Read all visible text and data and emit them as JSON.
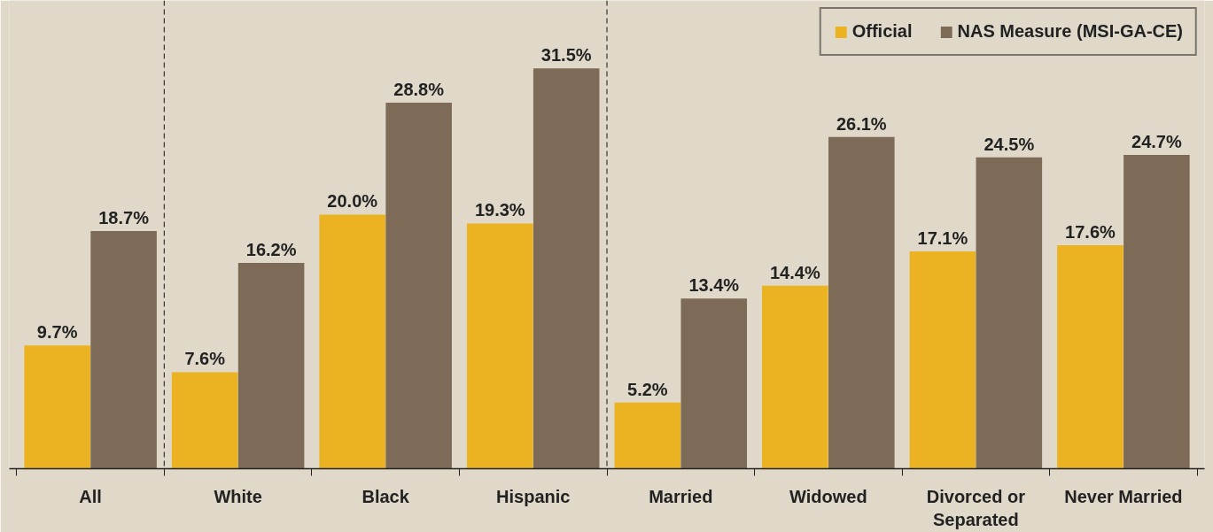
{
  "chart_data": {
    "type": "bar",
    "categories": [
      "All",
      "White",
      "Black",
      "Hispanic",
      "Married",
      "Widowed",
      "Divorced or\nSeparated",
      "Never Married"
    ],
    "series": [
      {
        "name": "Official",
        "color": "#ebb221",
        "values": [
          9.7,
          7.6,
          20.0,
          19.3,
          5.2,
          14.4,
          17.1,
          17.6
        ],
        "value_labels": [
          "9.7%",
          "7.6%",
          "20.0%",
          "19.3%",
          "5.2%",
          "14.4%",
          "17.1%",
          "17.6%"
        ]
      },
      {
        "name": "NAS Measure (MSI-GA-CE)",
        "color": "#7d6a57",
        "values": [
          18.7,
          16.2,
          28.8,
          31.5,
          13.4,
          26.1,
          24.5,
          24.7
        ],
        "value_labels": [
          "18.7%",
          "16.2%",
          "28.8%",
          "31.5%",
          "13.4%",
          "26.1%",
          "24.5%",
          "24.7%"
        ]
      }
    ],
    "grid": false,
    "legend": "top right"
  }
}
